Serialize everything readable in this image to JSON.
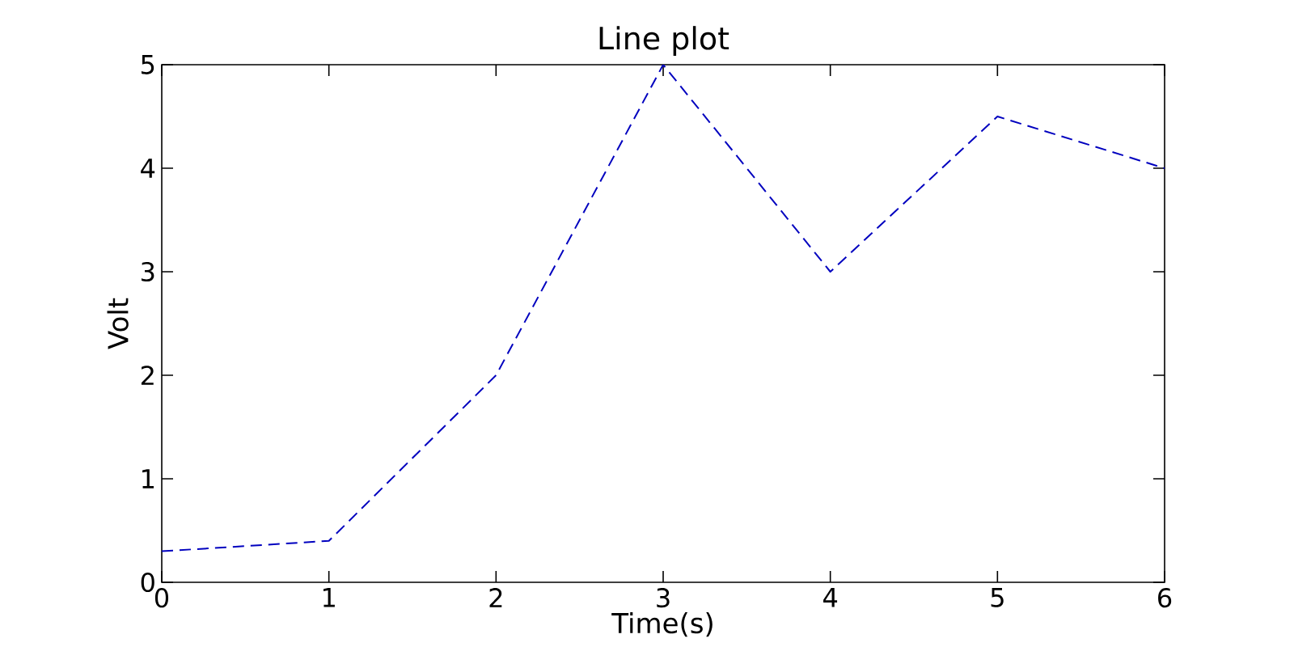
{
  "chart_data": {
    "type": "line",
    "title": "Line plot",
    "xlabel": "Time(s)",
    "ylabel": "Volt",
    "x": [
      0,
      1,
      2,
      3,
      4,
      5,
      6
    ],
    "series": [
      {
        "color": "#0000bf",
        "values": [
          0.3,
          0.4,
          2,
          5,
          3,
          4.5,
          4
        ]
      }
    ],
    "line_style": "dashed",
    "marker": "none",
    "xlim": [
      0,
      6
    ],
    "ylim": [
      0,
      5
    ],
    "xticks": [
      0,
      1,
      2,
      3,
      4,
      5,
      6
    ],
    "yticks": [
      0,
      1,
      2,
      3,
      4,
      5
    ]
  }
}
